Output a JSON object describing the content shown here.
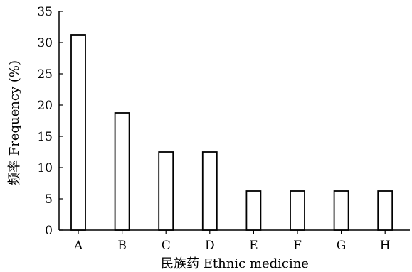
{
  "chart_data": {
    "type": "bar",
    "title": "",
    "xlabel": "民族药 Ethnic medicine",
    "ylabel": "频率 Frequency (%)",
    "categories": [
      "A",
      "B",
      "C",
      "D",
      "E",
      "F",
      "G",
      "H"
    ],
    "values": [
      31.25,
      18.75,
      12.5,
      12.5,
      6.25,
      6.25,
      6.25,
      6.25
    ],
    "ylim": [
      0,
      35
    ],
    "yticks": [
      0,
      5,
      10,
      15,
      20,
      25,
      30,
      35
    ],
    "grid": false,
    "legend": "none",
    "colors": {
      "bar_fill": "#ffffff",
      "bar_stroke": "#000000",
      "axis": "#000000"
    }
  }
}
